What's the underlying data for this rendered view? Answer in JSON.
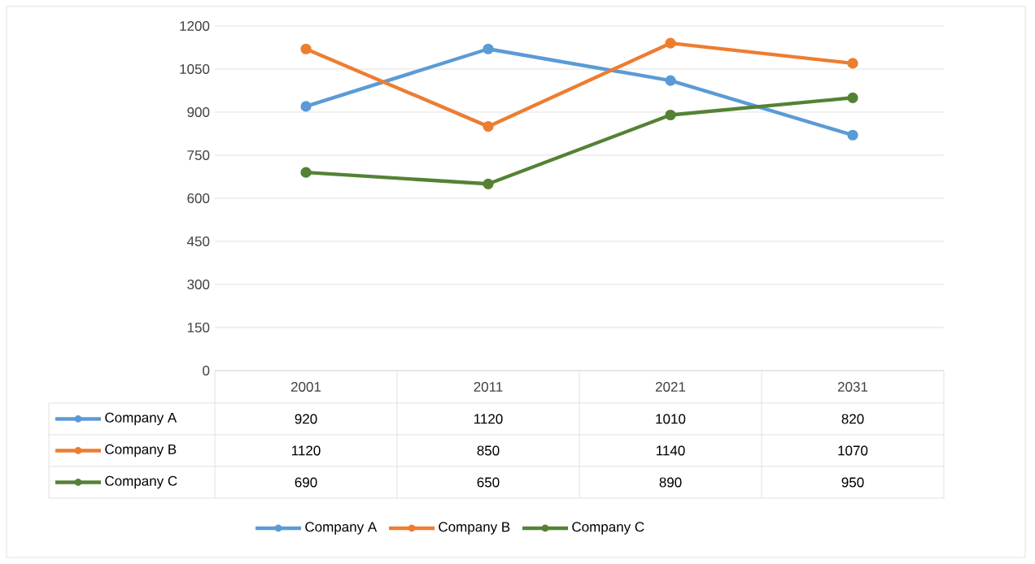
{
  "chart_data": {
    "type": "line",
    "categories": [
      "2001",
      "2011",
      "2021",
      "2031"
    ],
    "series": [
      {
        "name": "Company A",
        "color": "#5b9bd5",
        "values": [
          920,
          1120,
          1010,
          820
        ]
      },
      {
        "name": "Company B",
        "color": "#ed7d31",
        "values": [
          1120,
          850,
          1140,
          1070
        ]
      },
      {
        "name": "Company C",
        "color": "#548235",
        "values": [
          690,
          650,
          890,
          950
        ]
      }
    ],
    "ylim": [
      0,
      1200
    ],
    "yticks": [
      0,
      150,
      300,
      450,
      600,
      750,
      900,
      1050,
      1200
    ],
    "grid": "y",
    "legend": "bottom",
    "marker": "circle",
    "line_style": "solid",
    "data_labels": true
  }
}
